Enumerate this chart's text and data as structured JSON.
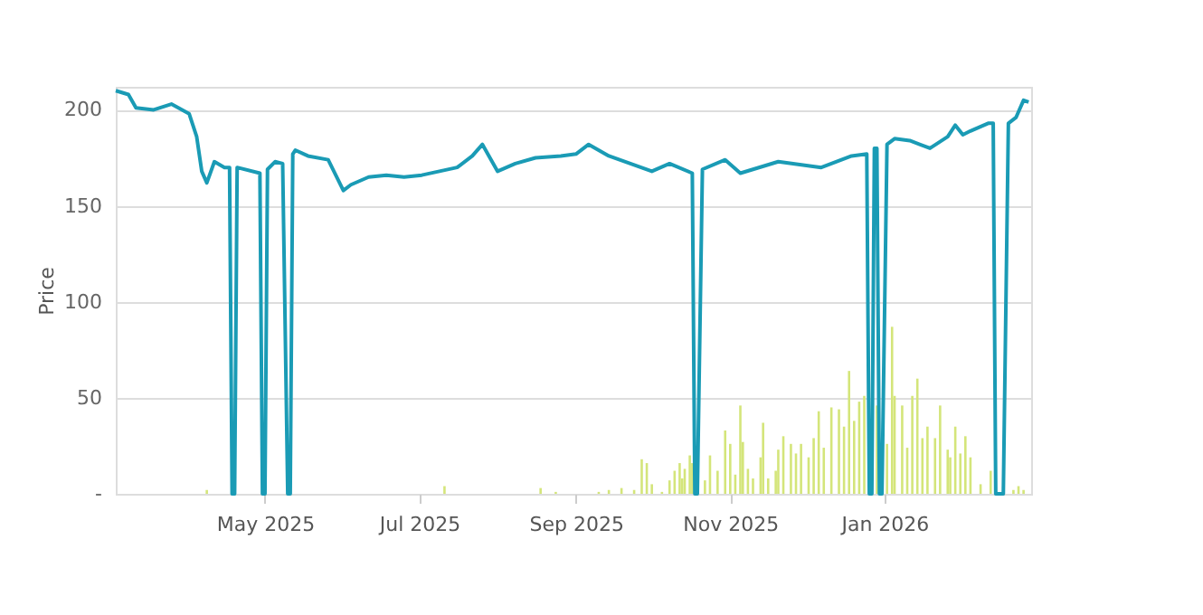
{
  "chart_data": {
    "type": "line",
    "ylabel": "Price",
    "grid": "y",
    "xlim": [
      "2025-03-03",
      "2026-02-28"
    ],
    "xticks": [
      {
        "value": "2025-05-01",
        "label": "May 2025"
      },
      {
        "value": "2025-07-01",
        "label": "Jul 2025"
      },
      {
        "value": "2025-09-01",
        "label": "Sep 2025"
      },
      {
        "value": "2025-11-01",
        "label": "Nov 2025"
      },
      {
        "value": "2026-01-01",
        "label": "Jan 2026"
      }
    ],
    "ylim": [
      0,
      212
    ],
    "yticks": [
      {
        "value": 0,
        "label": "-"
      },
      50,
      100,
      150,
      200
    ],
    "series": [
      {
        "type": "bar",
        "color": "#d4e57a",
        "x": [
          "2025-04-08",
          "2025-07-11",
          "2025-08-18",
          "2025-08-24",
          "2025-09-10",
          "2025-09-14",
          "2025-09-19",
          "2025-09-24",
          "2025-09-27",
          "2025-09-29",
          "2025-10-01",
          "2025-10-05",
          "2025-10-08",
          "2025-10-10",
          "2025-10-12",
          "2025-10-13",
          "2025-10-14",
          "2025-10-16",
          "2025-10-17",
          "2025-10-22",
          "2025-10-24",
          "2025-10-27",
          "2025-10-30",
          "2025-11-01",
          "2025-11-03",
          "2025-11-05",
          "2025-11-06",
          "2025-11-08",
          "2025-11-10",
          "2025-11-13",
          "2025-11-14",
          "2025-11-16",
          "2025-11-19",
          "2025-11-20",
          "2025-11-22",
          "2025-11-25",
          "2025-11-27",
          "2025-11-29",
          "2025-12-02",
          "2025-12-04",
          "2025-12-06",
          "2025-12-08",
          "2025-12-11",
          "2025-12-14",
          "2025-12-16",
          "2025-12-18",
          "2025-12-20",
          "2025-12-22",
          "2025-12-24",
          "2025-12-29",
          "2026-01-02",
          "2026-01-04",
          "2026-01-05",
          "2026-01-08",
          "2026-01-10",
          "2026-01-12",
          "2026-01-14",
          "2026-01-16",
          "2026-01-18",
          "2026-01-21",
          "2026-01-23",
          "2026-01-26",
          "2026-01-27",
          "2026-01-29",
          "2026-01-31",
          "2026-02-02",
          "2026-02-04",
          "2026-02-08",
          "2026-02-12",
          "2026-02-21",
          "2026-02-23",
          "2026-02-25"
        ],
        "values": [
          2,
          4,
          3,
          1,
          1,
          2,
          3,
          2,
          18,
          16,
          5,
          1,
          7,
          12,
          16,
          8,
          13,
          20,
          16,
          7,
          20,
          12,
          33,
          26,
          10,
          46,
          27,
          13,
          8,
          19,
          37,
          8,
          12,
          23,
          30,
          26,
          21,
          26,
          19,
          29,
          43,
          24,
          45,
          44,
          35,
          64,
          38,
          48,
          51,
          46,
          26,
          87,
          51,
          46,
          24,
          51,
          60,
          29,
          35,
          29,
          46,
          23,
          19,
          35,
          21,
          30,
          19,
          5,
          12,
          2,
          4,
          2
        ]
      },
      {
        "color": "#1a9bb5",
        "x": [
          "2025-03-03",
          "2025-03-08",
          "2025-03-11",
          "2025-03-18",
          "2025-03-25",
          "2025-04-01",
          "2025-04-04",
          "2025-04-06",
          "2025-04-08",
          "2025-04-11",
          "2025-04-15",
          "2025-04-17",
          "2025-04-18",
          "2025-04-19",
          "2025-04-20",
          "2025-04-29",
          "2025-04-30",
          "2025-05-01",
          "2025-05-02",
          "2025-05-05",
          "2025-05-08",
          "2025-05-10",
          "2025-05-11",
          "2025-05-12",
          "2025-05-13",
          "2025-05-18",
          "2025-05-26",
          "2025-05-29",
          "2025-06-01",
          "2025-06-04",
          "2025-06-11",
          "2025-06-18",
          "2025-06-25",
          "2025-07-02",
          "2025-07-09",
          "2025-07-16",
          "2025-07-22",
          "2025-07-26",
          "2025-08-01",
          "2025-08-08",
          "2025-08-16",
          "2025-08-26",
          "2025-09-01",
          "2025-09-06",
          "2025-09-14",
          "2025-10-01",
          "2025-10-08",
          "2025-10-17",
          "2025-10-18",
          "2025-10-19",
          "2025-10-21",
          "2025-10-30",
          "2025-11-05",
          "2025-11-20",
          "2025-12-07",
          "2025-12-19",
          "2025-12-25",
          "2025-12-26",
          "2025-12-27",
          "2025-12-28",
          "2025-12-29",
          "2025-12-30",
          "2025-12-31",
          "2026-01-02",
          "2026-01-05",
          "2026-01-11",
          "2026-01-19",
          "2026-01-26",
          "2026-01-29",
          "2026-02-01",
          "2026-02-04",
          "2026-02-11",
          "2026-02-13",
          "2026-02-14",
          "2026-02-17",
          "2026-02-19",
          "2026-02-22",
          "2026-02-25",
          "2026-02-27"
        ],
        "values": [
          210,
          208,
          201,
          200,
          203,
          198,
          186,
          168,
          162,
          173,
          170,
          170,
          0,
          0,
          170,
          167,
          0,
          0,
          169,
          173,
          172,
          0,
          0,
          177,
          179,
          176,
          174,
          166,
          158,
          161,
          165,
          166,
          165,
          166,
          168,
          170,
          176,
          182,
          168,
          172,
          175,
          176,
          177,
          182,
          176,
          168,
          172,
          167,
          0,
          0,
          169,
          174,
          167,
          173,
          170,
          176,
          177,
          0,
          0,
          180,
          180,
          0,
          0,
          182,
          185,
          184,
          180,
          186,
          192,
          187,
          189,
          193,
          193,
          0,
          0,
          193,
          196,
          205,
          204
        ]
      }
    ]
  }
}
